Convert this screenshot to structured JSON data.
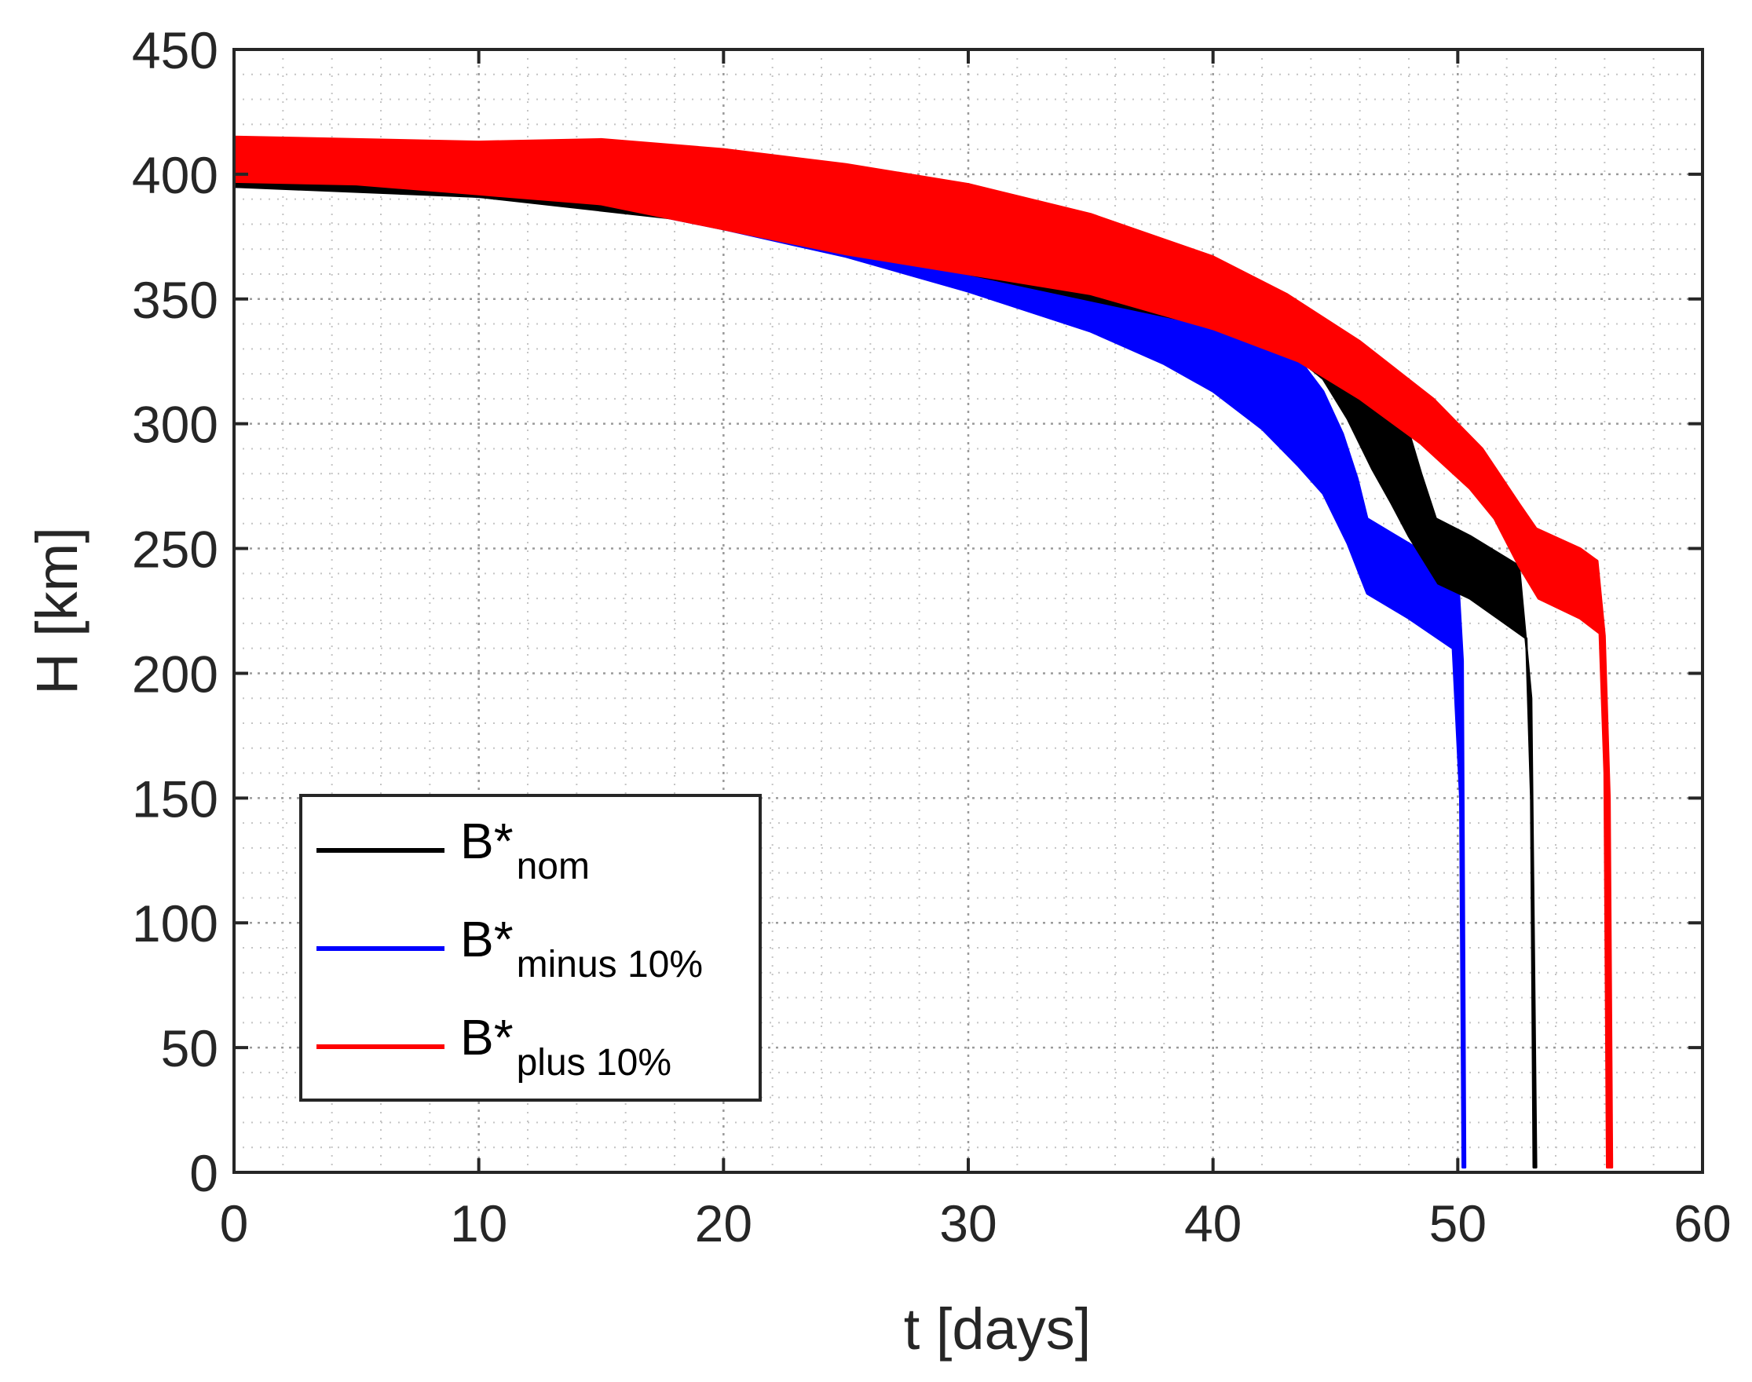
{
  "chart_data": {
    "type": "area",
    "title": "",
    "xlabel": "t [days]",
    "ylabel": "H [km]",
    "xlim": [
      0,
      60
    ],
    "ylim": [
      0,
      450
    ],
    "xticks": [
      0,
      10,
      20,
      30,
      40,
      50,
      60
    ],
    "yticks": [
      0,
      50,
      100,
      150,
      200,
      250,
      300,
      350,
      400,
      450
    ],
    "xtick_labels": [
      "0",
      "10",
      "20",
      "30",
      "40",
      "50",
      "60"
    ],
    "ytick_labels": [
      "0",
      "50",
      "100",
      "150",
      "200",
      "250",
      "300",
      "350",
      "400",
      "450"
    ],
    "grid": true,
    "minor_grid": true,
    "legend_position": "bottom-left",
    "series": [
      {
        "name_base": "B*",
        "name_sub": "minus 10%",
        "color": "#0000ff",
        "upper": [
          [
            0,
            413
          ],
          [
            5,
            411
          ],
          [
            10,
            408
          ],
          [
            15,
            404
          ],
          [
            20,
            395
          ],
          [
            25,
            383
          ],
          [
            30,
            371
          ],
          [
            35,
            357
          ],
          [
            40,
            342
          ],
          [
            42,
            336
          ],
          [
            43.5,
            326
          ],
          [
            44.5,
            313
          ],
          [
            45.3,
            296
          ],
          [
            45.9,
            278
          ],
          [
            46.3,
            262
          ],
          [
            48,
            252
          ],
          [
            50,
            240
          ],
          [
            50.2,
            205
          ],
          [
            50.3,
            2
          ]
        ],
        "lower": [
          [
            0,
            395
          ],
          [
            5,
            394
          ],
          [
            10,
            391
          ],
          [
            15,
            388
          ],
          [
            20,
            378
          ],
          [
            25,
            367
          ],
          [
            30,
            353
          ],
          [
            35,
            337
          ],
          [
            38,
            324
          ],
          [
            40,
            313
          ],
          [
            42,
            298
          ],
          [
            43.5,
            283
          ],
          [
            44.5,
            272
          ],
          [
            45.5,
            252
          ],
          [
            46.3,
            232
          ],
          [
            48,
            222
          ],
          [
            49.8,
            210
          ],
          [
            50.1,
            150
          ],
          [
            50.2,
            2
          ]
        ]
      },
      {
        "name_base": "B*",
        "name_sub": "nom",
        "color": "#000000",
        "upper": [
          [
            0,
            413
          ],
          [
            10,
            408
          ],
          [
            20,
            399
          ],
          [
            30,
            385
          ],
          [
            40,
            361
          ],
          [
            43.5,
            343
          ],
          [
            45,
            334
          ],
          [
            46.5,
            321
          ],
          [
            47.8,
            303
          ],
          [
            48.5,
            280
          ],
          [
            49.1,
            262
          ],
          [
            50.5,
            255
          ],
          [
            52.5,
            243
          ],
          [
            53,
            190
          ],
          [
            53.2,
            2
          ]
        ],
        "lower": [
          [
            0,
            395
          ],
          [
            10,
            391
          ],
          [
            20,
            380
          ],
          [
            30,
            360
          ],
          [
            40,
            339
          ],
          [
            43.5,
            326
          ],
          [
            44.5,
            318
          ],
          [
            45.5,
            302
          ],
          [
            46.5,
            282
          ],
          [
            47.3,
            268
          ],
          [
            48,
            255
          ],
          [
            49.2,
            236
          ],
          [
            50.5,
            230
          ],
          [
            52.8,
            214
          ],
          [
            53,
            150
          ],
          [
            53.1,
            2
          ]
        ]
      },
      {
        "name_base": "B*",
        "name_sub": "plus 10%",
        "color": "#ff0000",
        "upper": [
          [
            0,
            415
          ],
          [
            5,
            414
          ],
          [
            10,
            413
          ],
          [
            15,
            414
          ],
          [
            20,
            410
          ],
          [
            25,
            404
          ],
          [
            30,
            396
          ],
          [
            35,
            384
          ],
          [
            40,
            367
          ],
          [
            43,
            352
          ],
          [
            46,
            333
          ],
          [
            49,
            310
          ],
          [
            51,
            290
          ],
          [
            52.5,
            268
          ],
          [
            53.2,
            258
          ],
          [
            55,
            250
          ],
          [
            55.7,
            245
          ],
          [
            56,
            215
          ],
          [
            56.2,
            150
          ],
          [
            56.3,
            2
          ]
        ],
        "lower": [
          [
            0,
            397
          ],
          [
            5,
            396
          ],
          [
            10,
            392
          ],
          [
            15,
            388
          ],
          [
            20,
            378
          ],
          [
            25,
            368
          ],
          [
            30,
            360
          ],
          [
            35,
            352
          ],
          [
            40,
            338
          ],
          [
            43.5,
            325
          ],
          [
            46,
            310
          ],
          [
            48.5,
            292
          ],
          [
            50.5,
            274
          ],
          [
            51.5,
            262
          ],
          [
            52.5,
            243
          ],
          [
            53.3,
            230
          ],
          [
            55,
            222
          ],
          [
            55.8,
            216
          ],
          [
            56,
            160
          ],
          [
            56.1,
            2
          ]
        ]
      }
    ]
  }
}
